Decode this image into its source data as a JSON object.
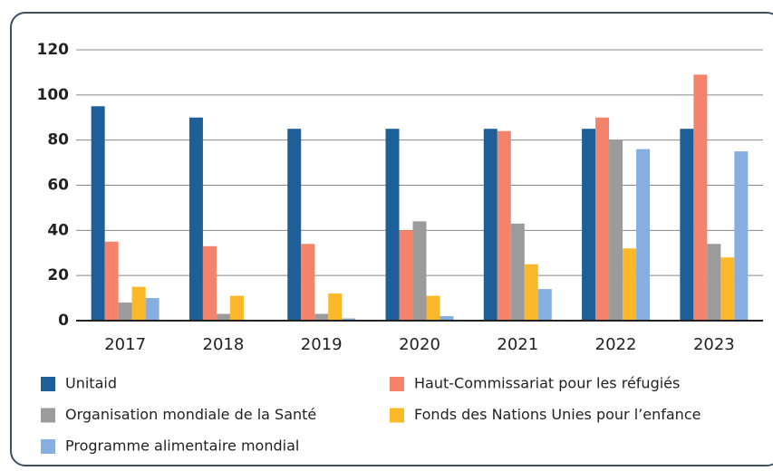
{
  "chart_data": {
    "type": "bar",
    "categories": [
      "2017",
      "2018",
      "2019",
      "2020",
      "2021",
      "2022",
      "2023"
    ],
    "series": [
      {
        "name": "Unitaid",
        "color": "#1f5f99",
        "values": [
          95,
          90,
          85,
          85,
          85,
          85,
          85
        ]
      },
      {
        "name": "Haut-Commissariat pour les réfugiés",
        "color": "#f4836b",
        "values": [
          35,
          33,
          34,
          40,
          84,
          90,
          109
        ]
      },
      {
        "name": "Organisation mondiale de la Santé",
        "color": "#9b9b9b",
        "values": [
          8,
          3,
          3,
          44,
          43,
          80,
          34
        ]
      },
      {
        "name": "Fonds des Nations Unies pour l’enfance",
        "color": "#fbb829",
        "values": [
          15,
          11,
          12,
          11,
          25,
          32,
          28
        ]
      },
      {
        "name": "Programme alimentaire mondial",
        "color": "#86aee0",
        "values": [
          10,
          0,
          1,
          2,
          14,
          76,
          75
        ]
      }
    ],
    "ylim": [
      0,
      120
    ],
    "yticks": [
      0,
      20,
      40,
      60,
      80,
      100,
      120
    ],
    "grid": true,
    "legend": "bottom"
  }
}
